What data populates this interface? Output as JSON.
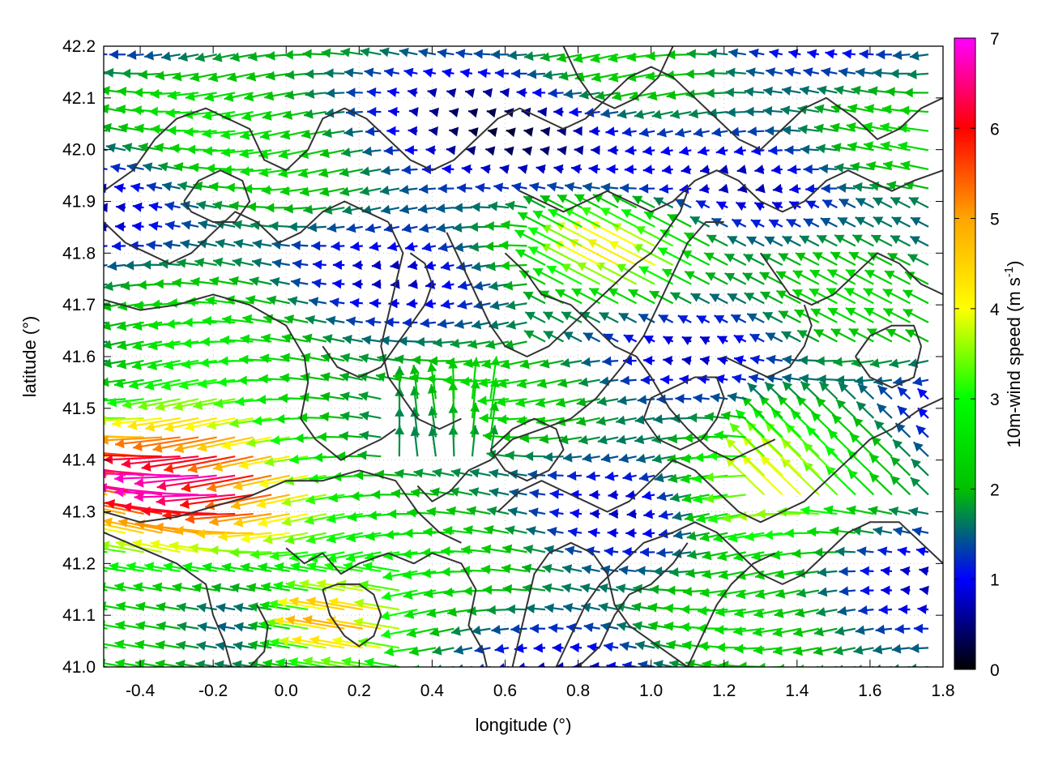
{
  "chart_data": {
    "type": "vector-field",
    "xlabel": "longitude (°)",
    "ylabel": "latitude (°)",
    "colorbar_label_main": "10m-wind speed (m s",
    "colorbar_label_sup": "-1",
    "colorbar_label_end": ")",
    "xlim": [
      -0.5,
      1.8
    ],
    "ylim": [
      41.0,
      42.2
    ],
    "cblim": [
      0,
      7
    ],
    "x_ticks": [
      "-0.4",
      "-0.2",
      "0.0",
      "0.2",
      "0.4",
      "0.6",
      "0.8",
      "1.0",
      "1.2",
      "1.4",
      "1.6",
      "1.8"
    ],
    "x_tick_values": [
      -0.4,
      -0.2,
      0.0,
      0.2,
      0.4,
      0.6,
      0.8,
      1.0,
      1.2,
      1.4,
      1.6,
      1.8
    ],
    "y_ticks": [
      "41.0",
      "41.1",
      "41.2",
      "41.3",
      "41.4",
      "41.5",
      "41.6",
      "41.7",
      "41.8",
      "41.9",
      "42.0",
      "42.1",
      "42.2"
    ],
    "y_tick_values": [
      41.0,
      41.1,
      41.2,
      41.3,
      41.4,
      41.5,
      41.6,
      41.7,
      41.8,
      41.9,
      42.0,
      42.1,
      42.2
    ],
    "cb_ticks": [
      "0",
      "1",
      "2",
      "3",
      "4",
      "5",
      "6",
      "7"
    ],
    "cb_tick_values": [
      0,
      1,
      2,
      3,
      4,
      5,
      6,
      7
    ],
    "colormap": [
      "#000000",
      "#0000ff",
      "#00c000",
      "#00ff00",
      "#ffff00",
      "#ffa500",
      "#ff0000",
      "#ff00ff"
    ],
    "grid": "dotted",
    "vector_grid": {
      "lon_start": -0.49,
      "lon_step": 0.05,
      "lat_start": 41.0,
      "lat_step": 0.037
    },
    "contour_color": "#333333",
    "contours": [
      [
        [
          -0.5,
          41.71
        ],
        [
          -0.4,
          41.69
        ],
        [
          -0.3,
          41.7
        ],
        [
          -0.2,
          41.72
        ],
        [
          -0.1,
          41.7
        ],
        [
          0.0,
          41.66
        ],
        [
          0.05,
          41.6
        ],
        [
          0.06,
          41.55
        ],
        [
          0.04,
          41.48
        ],
        [
          0.08,
          41.44
        ],
        [
          0.15,
          41.4
        ],
        [
          0.2,
          41.42
        ],
        [
          0.26,
          41.44
        ],
        [
          0.3,
          41.46
        ]
      ],
      [
        [
          -0.5,
          41.3
        ],
        [
          -0.4,
          41.28
        ],
        [
          -0.3,
          41.29
        ],
        [
          -0.2,
          41.31
        ],
        [
          -0.1,
          41.33
        ],
        [
          0.0,
          41.36
        ],
        [
          0.1,
          41.36
        ],
        [
          0.2,
          41.38
        ],
        [
          0.3,
          41.36
        ],
        [
          0.36,
          41.3
        ],
        [
          0.42,
          41.26
        ],
        [
          0.48,
          41.24
        ]
      ],
      [
        [
          -0.5,
          41.26
        ],
        [
          -0.4,
          41.23
        ],
        [
          -0.3,
          41.2
        ],
        [
          -0.22,
          41.16
        ],
        [
          -0.2,
          41.1
        ],
        [
          -0.17,
          41.05
        ],
        [
          -0.15,
          41.0
        ]
      ],
      [
        [
          0.0,
          41.23
        ],
        [
          0.05,
          41.2
        ],
        [
          0.1,
          41.22
        ],
        [
          0.15,
          41.18
        ],
        [
          0.2,
          41.2
        ],
        [
          0.28,
          41.22
        ],
        [
          0.35,
          41.2
        ],
        [
          0.4,
          41.22
        ],
        [
          0.48,
          41.2
        ],
        [
          0.52,
          41.15
        ],
        [
          0.5,
          41.08
        ],
        [
          0.54,
          41.03
        ],
        [
          0.55,
          41.0
        ]
      ],
      [
        [
          -0.08,
          41.12
        ],
        [
          -0.05,
          41.08
        ],
        [
          -0.06,
          41.03
        ],
        [
          -0.1,
          41.0
        ]
      ],
      [
        [
          0.36,
          41.35
        ],
        [
          0.4,
          41.32
        ],
        [
          0.45,
          41.34
        ],
        [
          0.5,
          41.38
        ],
        [
          0.56,
          41.4
        ],
        [
          0.62,
          41.44
        ],
        [
          0.7,
          41.46
        ],
        [
          0.78,
          41.48
        ],
        [
          0.85,
          41.52
        ],
        [
          0.92,
          41.58
        ],
        [
          0.98,
          41.64
        ],
        [
          1.02,
          41.7
        ],
        [
          1.06,
          41.76
        ],
        [
          1.1,
          41.82
        ],
        [
          1.15,
          41.86
        ],
        [
          1.2,
          41.86
        ]
      ],
      [
        [
          0.28,
          41.86
        ],
        [
          0.32,
          41.8
        ],
        [
          0.3,
          41.74
        ],
        [
          0.28,
          41.68
        ],
        [
          0.26,
          41.62
        ],
        [
          0.28,
          41.56
        ],
        [
          0.32,
          41.52
        ],
        [
          0.36,
          41.48
        ],
        [
          0.42,
          41.46
        ],
        [
          0.48,
          41.48
        ]
      ],
      [
        [
          0.6,
          41.8
        ],
        [
          0.66,
          41.76
        ],
        [
          0.7,
          41.72
        ],
        [
          0.78,
          41.7
        ],
        [
          0.84,
          41.66
        ],
        [
          0.9,
          41.62
        ],
        [
          0.96,
          41.6
        ],
        [
          1.0,
          41.56
        ],
        [
          1.05,
          41.5
        ],
        [
          1.1,
          41.46
        ],
        [
          1.16,
          41.42
        ],
        [
          1.22,
          41.4
        ],
        [
          1.28,
          41.42
        ],
        [
          1.34,
          41.44
        ]
      ],
      [
        [
          0.58,
          41.3
        ],
        [
          0.64,
          41.34
        ],
        [
          0.7,
          41.36
        ],
        [
          0.76,
          41.34
        ],
        [
          0.82,
          41.32
        ],
        [
          0.88,
          41.3
        ],
        [
          0.94,
          41.32
        ],
        [
          1.0,
          41.36
        ],
        [
          1.06,
          41.4
        ],
        [
          1.12,
          41.38
        ],
        [
          1.18,
          41.34
        ],
        [
          1.24,
          41.3
        ],
        [
          1.3,
          41.28
        ],
        [
          1.36,
          41.3
        ],
        [
          1.42,
          41.32
        ],
        [
          1.48,
          41.36
        ],
        [
          1.54,
          41.4
        ],
        [
          1.6,
          41.44
        ],
        [
          1.66,
          41.46
        ],
        [
          1.74,
          41.5
        ],
        [
          1.8,
          41.52
        ]
      ],
      [
        [
          0.62,
          41.0
        ],
        [
          0.64,
          41.06
        ],
        [
          0.66,
          41.12
        ],
        [
          0.68,
          41.18
        ],
        [
          0.72,
          41.22
        ],
        [
          0.78,
          41.24
        ],
        [
          0.84,
          41.22
        ],
        [
          0.88,
          41.18
        ],
        [
          0.9,
          41.12
        ],
        [
          0.94,
          41.08
        ],
        [
          1.0,
          41.05
        ],
        [
          1.06,
          41.02
        ],
        [
          1.1,
          41.0
        ]
      ],
      [
        [
          0.74,
          41.0
        ],
        [
          0.78,
          41.06
        ],
        [
          0.82,
          41.12
        ],
        [
          0.86,
          41.16
        ],
        [
          0.92,
          41.2
        ],
        [
          0.98,
          41.24
        ],
        [
          1.06,
          41.26
        ],
        [
          1.12,
          41.28
        ],
        [
          1.18,
          41.26
        ],
        [
          1.24,
          41.22
        ],
        [
          1.3,
          41.18
        ],
        [
          1.36,
          41.16
        ],
        [
          1.42,
          41.18
        ],
        [
          1.48,
          41.22
        ],
        [
          1.54,
          41.26
        ],
        [
          1.6,
          41.28
        ],
        [
          1.68,
          41.28
        ],
        [
          1.74,
          41.24
        ],
        [
          1.8,
          41.2
        ]
      ],
      [
        [
          0.8,
          41.0
        ],
        [
          0.86,
          41.04
        ],
        [
          0.9,
          41.1
        ],
        [
          0.94,
          41.14
        ],
        [
          1.0,
          41.16
        ],
        [
          1.06,
          41.2
        ],
        [
          1.1,
          41.24
        ]
      ],
      [
        [
          1.1,
          41.0
        ],
        [
          1.14,
          41.06
        ],
        [
          1.18,
          41.12
        ],
        [
          1.22,
          41.16
        ],
        [
          1.28,
          41.2
        ],
        [
          1.34,
          41.22
        ]
      ],
      [
        [
          -0.5,
          41.92
        ],
        [
          -0.42,
          41.96
        ],
        [
          -0.36,
          42.02
        ],
        [
          -0.3,
          42.06
        ],
        [
          -0.22,
          42.08
        ],
        [
          -0.16,
          42.06
        ],
        [
          -0.1,
          42.04
        ],
        [
          -0.06,
          41.98
        ],
        [
          0.0,
          41.96
        ],
        [
          0.06,
          42.0
        ],
        [
          0.1,
          42.06
        ],
        [
          0.16,
          42.08
        ],
        [
          0.22,
          42.06
        ],
        [
          0.28,
          42.02
        ],
        [
          0.34,
          41.98
        ],
        [
          0.4,
          41.96
        ],
        [
          0.46,
          41.98
        ],
        [
          0.52,
          42.02
        ],
        [
          0.58,
          42.06
        ],
        [
          0.64,
          42.08
        ],
        [
          0.7,
          42.06
        ],
        [
          0.76,
          42.04
        ],
        [
          0.82,
          42.06
        ],
        [
          0.88,
          42.1
        ],
        [
          0.94,
          42.14
        ],
        [
          1.0,
          42.16
        ],
        [
          1.06,
          42.14
        ],
        [
          1.12,
          42.1
        ],
        [
          1.18,
          42.06
        ],
        [
          1.24,
          42.02
        ],
        [
          1.3,
          42.0
        ],
        [
          1.36,
          42.04
        ],
        [
          1.42,
          42.08
        ],
        [
          1.48,
          42.1
        ],
        [
          1.56,
          42.06
        ],
        [
          1.62,
          42.02
        ],
        [
          1.68,
          42.04
        ],
        [
          1.74,
          42.08
        ],
        [
          1.8,
          42.1
        ]
      ],
      [
        [
          -0.5,
          41.86
        ],
        [
          -0.44,
          41.82
        ],
        [
          -0.38,
          41.8
        ],
        [
          -0.32,
          41.78
        ],
        [
          -0.26,
          41.8
        ],
        [
          -0.2,
          41.84
        ],
        [
          -0.14,
          41.88
        ],
        [
          -0.08,
          41.86
        ],
        [
          -0.02,
          41.82
        ],
        [
          0.04,
          41.84
        ],
        [
          0.1,
          41.88
        ],
        [
          0.16,
          41.9
        ],
        [
          0.22,
          41.88
        ],
        [
          0.28,
          41.86
        ]
      ],
      [
        [
          -0.28,
          41.9
        ],
        [
          -0.24,
          41.94
        ],
        [
          -0.18,
          41.96
        ],
        [
          -0.12,
          41.94
        ],
        [
          -0.1,
          41.9
        ],
        [
          -0.14,
          41.86
        ],
        [
          -0.2,
          41.86
        ],
        [
          -0.26,
          41.88
        ],
        [
          -0.28,
          41.9
        ]
      ],
      [
        [
          0.64,
          41.92
        ],
        [
          0.7,
          41.9
        ],
        [
          0.76,
          41.88
        ],
        [
          0.82,
          41.9
        ],
        [
          0.88,
          41.92
        ],
        [
          0.94,
          41.9
        ],
        [
          1.0,
          41.88
        ],
        [
          1.06,
          41.9
        ],
        [
          1.12,
          41.94
        ],
        [
          1.18,
          41.96
        ],
        [
          1.24,
          41.94
        ],
        [
          1.3,
          41.9
        ],
        [
          1.36,
          41.88
        ],
        [
          1.42,
          41.9
        ],
        [
          1.48,
          41.94
        ],
        [
          1.54,
          41.96
        ],
        [
          1.6,
          41.94
        ],
        [
          1.66,
          41.92
        ],
        [
          1.72,
          41.94
        ],
        [
          1.8,
          41.96
        ]
      ],
      [
        [
          0.76,
          42.2
        ],
        [
          0.8,
          42.14
        ],
        [
          0.84,
          42.1
        ],
        [
          0.9,
          42.08
        ],
        [
          0.96,
          42.1
        ],
        [
          1.02,
          42.14
        ],
        [
          1.06,
          42.2
        ]
      ],
      [
        [
          1.3,
          41.8
        ],
        [
          1.34,
          41.76
        ],
        [
          1.38,
          41.72
        ],
        [
          1.44,
          41.7
        ],
        [
          1.5,
          41.72
        ],
        [
          1.56,
          41.76
        ],
        [
          1.62,
          41.8
        ],
        [
          1.68,
          41.78
        ],
        [
          1.74,
          41.74
        ],
        [
          1.8,
          41.72
        ]
      ],
      [
        [
          1.56,
          41.6
        ],
        [
          1.6,
          41.56
        ],
        [
          1.66,
          41.54
        ],
        [
          1.72,
          41.56
        ],
        [
          1.74,
          41.62
        ],
        [
          1.72,
          41.66
        ],
        [
          1.66,
          41.66
        ],
        [
          1.6,
          41.64
        ],
        [
          1.56,
          41.6
        ]
      ],
      [
        [
          0.44,
          41.84
        ],
        [
          0.48,
          41.78
        ],
        [
          0.52,
          41.72
        ],
        [
          0.56,
          41.66
        ],
        [
          0.6,
          41.62
        ],
        [
          0.66,
          41.6
        ],
        [
          0.72,
          41.62
        ],
        [
          0.78,
          41.66
        ],
        [
          0.84,
          41.7
        ],
        [
          0.9,
          41.74
        ],
        [
          0.96,
          41.78
        ],
        [
          1.0,
          41.8
        ],
        [
          1.04,
          41.84
        ],
        [
          1.08,
          41.88
        ],
        [
          1.1,
          41.92
        ]
      ],
      [
        [
          0.1,
          41.62
        ],
        [
          0.14,
          41.58
        ],
        [
          0.2,
          41.56
        ],
        [
          0.26,
          41.58
        ],
        [
          0.3,
          41.62
        ],
        [
          0.34,
          41.66
        ],
        [
          0.38,
          41.7
        ],
        [
          0.4,
          41.74
        ],
        [
          0.38,
          41.78
        ],
        [
          0.34,
          41.8
        ]
      ],
      [
        [
          1.2,
          41.6
        ],
        [
          1.26,
          41.58
        ],
        [
          1.32,
          41.56
        ],
        [
          1.38,
          41.58
        ],
        [
          1.42,
          41.62
        ],
        [
          1.44,
          41.66
        ],
        [
          1.42,
          41.7
        ]
      ],
      [
        [
          0.98,
          41.48
        ],
        [
          1.02,
          41.44
        ],
        [
          1.08,
          41.42
        ],
        [
          1.14,
          41.44
        ],
        [
          1.18,
          41.48
        ],
        [
          1.2,
          41.52
        ],
        [
          1.18,
          41.56
        ],
        [
          1.12,
          41.56
        ],
        [
          1.06,
          41.54
        ],
        [
          1.0,
          41.52
        ],
        [
          0.98,
          41.48
        ]
      ],
      [
        [
          0.1,
          41.15
        ],
        [
          0.12,
          41.1
        ],
        [
          0.16,
          41.06
        ],
        [
          0.2,
          41.04
        ],
        [
          0.24,
          41.06
        ],
        [
          0.26,
          41.1
        ],
        [
          0.24,
          41.14
        ],
        [
          0.2,
          41.16
        ],
        [
          0.14,
          41.16
        ],
        [
          0.1,
          41.15
        ]
      ],
      [
        [
          0.56,
          41.42
        ],
        [
          0.6,
          41.38
        ],
        [
          0.66,
          41.36
        ],
        [
          0.72,
          41.38
        ],
        [
          0.76,
          41.42
        ],
        [
          0.74,
          41.46
        ],
        [
          0.68,
          41.48
        ],
        [
          0.62,
          41.46
        ],
        [
          0.56,
          41.42
        ]
      ]
    ]
  }
}
